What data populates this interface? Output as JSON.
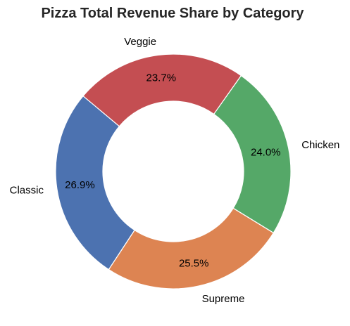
{
  "chart_data": {
    "type": "pie",
    "style": "donut",
    "title": "Pizza Total Revenue Share by Category",
    "categories": [
      "Classic",
      "Supreme",
      "Chicken",
      "Veggie"
    ],
    "values": [
      26.9,
      25.5,
      24.0,
      23.7
    ],
    "percent_labels": [
      "26.9%",
      "25.5%",
      "24.0%",
      "23.7%"
    ],
    "colors": [
      "#4c72b0",
      "#dd8452",
      "#55a868",
      "#c44e52"
    ],
    "start_angle_deg": 140,
    "direction": "counterclockwise",
    "legend": "none"
  }
}
